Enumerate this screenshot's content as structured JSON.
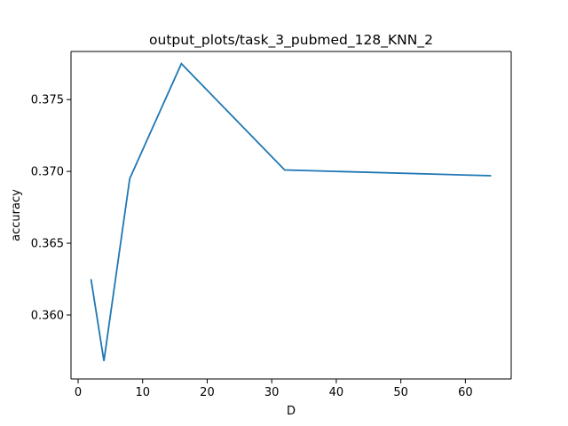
{
  "chart_data": {
    "type": "line",
    "title": "output_plots/task_3_pubmed_128_KNN_2",
    "xlabel": "D",
    "ylabel": "accuracy",
    "xlim": [
      -1.1,
      67.1
    ],
    "ylim": [
      0.35555,
      0.37835
    ],
    "xticks": [
      0,
      10,
      20,
      30,
      40,
      50,
      60
    ],
    "xtick_labels": [
      "0",
      "10",
      "20",
      "30",
      "40",
      "50",
      "60"
    ],
    "yticks": [
      0.36,
      0.365,
      0.37,
      0.375
    ],
    "ytick_labels": [
      "0.360",
      "0.365",
      "0.370",
      "0.375"
    ],
    "grid": false,
    "legend": "none",
    "series": [
      {
        "color": "#1f77b4",
        "x": [
          2,
          4,
          8,
          16,
          32,
          64
        ],
        "y": [
          0.3625,
          0.3568,
          0.3695,
          0.3775,
          0.3701,
          0.3697
        ]
      }
    ]
  }
}
